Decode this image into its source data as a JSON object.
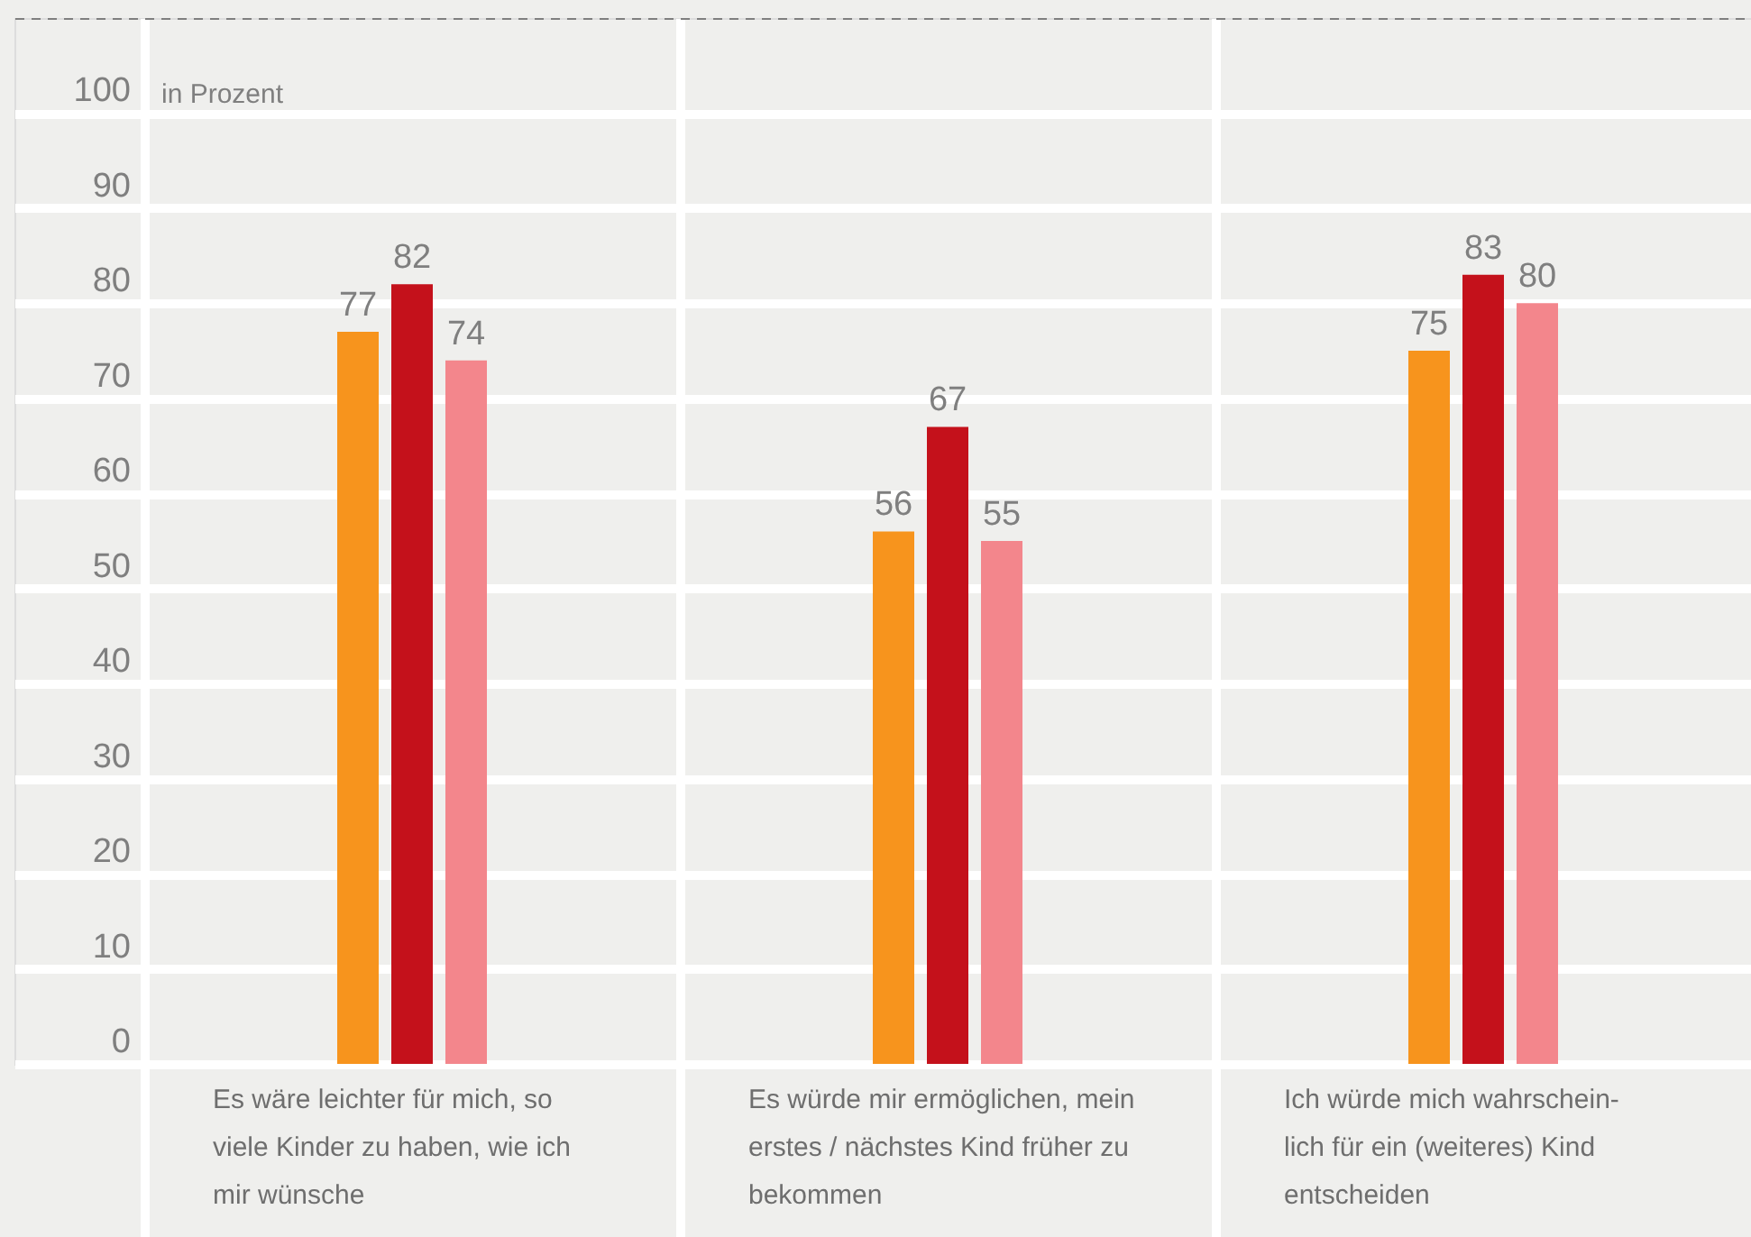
{
  "chart_data": {
    "type": "bar",
    "ylabel": "in Prozent",
    "categories": [
      "Es wäre leichter für mich, so\nviele Kinder zu haben, wie ich\nmir wünsche",
      "Es würde mir ermöglichen, mein\nerstes / nächstes Kind früher zu\nbekommen",
      "Ich würde mich wahrschein-\nlich für ein (weiteres) Kind\nentscheiden"
    ],
    "series": [
      {
        "color": "#f7941d",
        "values": [
          77,
          56,
          75
        ]
      },
      {
        "color": "#c4111b",
        "values": [
          82,
          67,
          83
        ]
      },
      {
        "color": "#f3868c",
        "values": [
          74,
          55,
          80
        ]
      }
    ],
    "ylim": [
      0,
      110
    ],
    "yticks": [
      0,
      10,
      20,
      30,
      40,
      50,
      60,
      70,
      80,
      90,
      100
    ],
    "grid": true,
    "data_labels": true
  }
}
